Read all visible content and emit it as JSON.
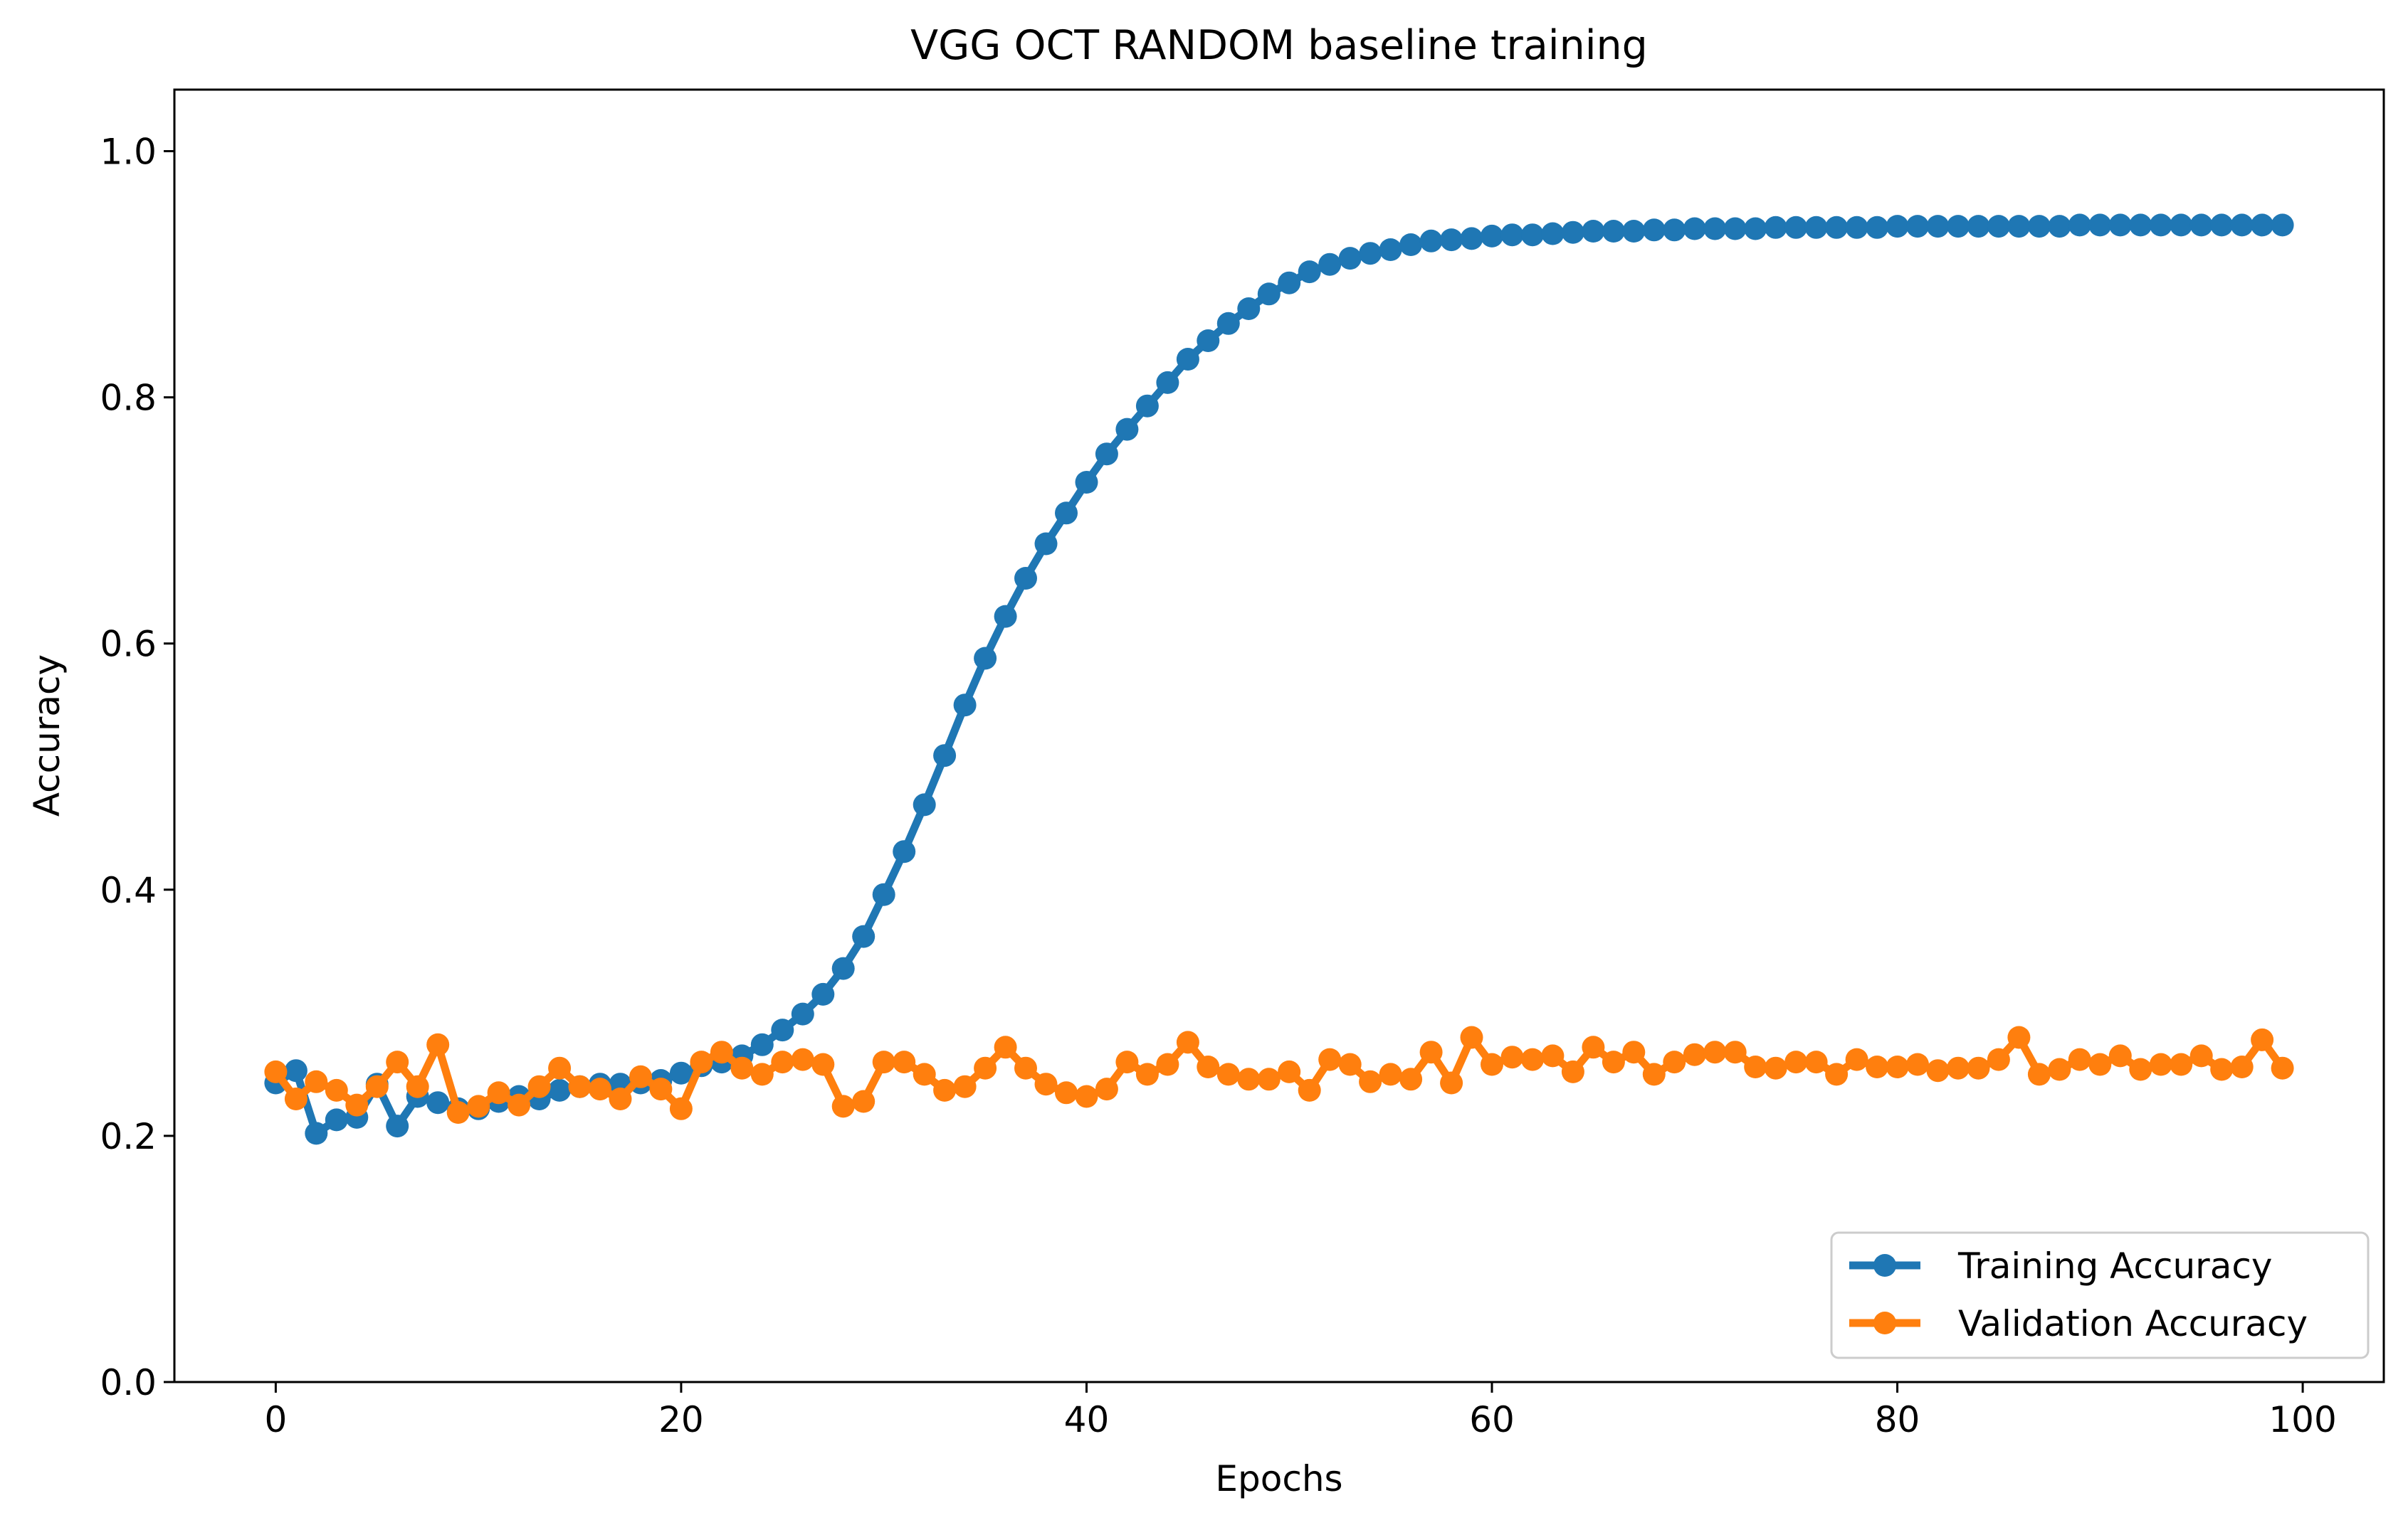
{
  "chart_data": {
    "type": "line",
    "title": "VGG OCT RANDOM baseline training",
    "xlabel": "Epochs",
    "ylabel": "Accuracy",
    "xlim": [
      -5,
      104
    ],
    "ylim": [
      0.0,
      1.05
    ],
    "xticks": [
      0,
      20,
      40,
      60,
      80,
      100
    ],
    "xtick_labels": [
      "0",
      "20",
      "40",
      "60",
      "80",
      "100"
    ],
    "yticks": [
      0.0,
      0.2,
      0.4,
      0.6,
      0.8,
      1.0
    ],
    "ytick_labels": [
      "0.0",
      "0.2",
      "0.4",
      "0.6",
      "0.8",
      "1.0"
    ],
    "grid": false,
    "legend_position": "lower-right",
    "series": [
      {
        "name": "Training Accuracy",
        "color": "#1f77b4",
        "marker": "circle",
        "x": [
          0,
          1,
          2,
          3,
          4,
          5,
          6,
          7,
          8,
          9,
          10,
          11,
          12,
          13,
          14,
          15,
          16,
          17,
          18,
          19,
          20,
          21,
          22,
          23,
          24,
          25,
          26,
          27,
          28,
          29,
          30,
          31,
          32,
          33,
          34,
          35,
          36,
          37,
          38,
          39,
          40,
          41,
          42,
          43,
          44,
          45,
          46,
          47,
          48,
          49,
          50,
          51,
          52,
          53,
          54,
          55,
          56,
          57,
          58,
          59,
          60,
          61,
          62,
          63,
          64,
          65,
          66,
          67,
          68,
          69,
          70,
          71,
          72,
          73,
          74,
          75,
          76,
          77,
          78,
          79,
          80,
          81,
          82,
          83,
          84,
          85,
          86,
          87,
          88,
          89,
          90,
          91,
          92,
          93,
          94,
          95,
          96,
          97,
          98,
          99
        ],
        "values": [
          0.243,
          0.253,
          0.202,
          0.213,
          0.215,
          0.242,
          0.208,
          0.232,
          0.227,
          0.222,
          0.222,
          0.228,
          0.232,
          0.23,
          0.237,
          0.24,
          0.242,
          0.242,
          0.243,
          0.245,
          0.251,
          0.257,
          0.26,
          0.265,
          0.274,
          0.286,
          0.299,
          0.315,
          0.336,
          0.362,
          0.396,
          0.431,
          0.469,
          0.509,
          0.55,
          0.588,
          0.622,
          0.653,
          0.681,
          0.706,
          0.731,
          0.754,
          0.774,
          0.793,
          0.812,
          0.831,
          0.846,
          0.86,
          0.872,
          0.884,
          0.893,
          0.902,
          0.908,
          0.913,
          0.917,
          0.92,
          0.924,
          0.927,
          0.928,
          0.929,
          0.931,
          0.932,
          0.932,
          0.933,
          0.934,
          0.935,
          0.935,
          0.935,
          0.936,
          0.936,
          0.937,
          0.937,
          0.937,
          0.937,
          0.938,
          0.938,
          0.938,
          0.938,
          0.938,
          0.938,
          0.939,
          0.939,
          0.939,
          0.939,
          0.939,
          0.939,
          0.939,
          0.939,
          0.939,
          0.94,
          0.94,
          0.94,
          0.94,
          0.94,
          0.94,
          0.94,
          0.94,
          0.94,
          0.94,
          0.94
        ]
      },
      {
        "name": "Validation Accuracy",
        "color": "#ff7f0e",
        "marker": "circle",
        "x": [
          0,
          1,
          2,
          3,
          4,
          5,
          6,
          7,
          8,
          9,
          10,
          11,
          12,
          13,
          14,
          15,
          16,
          17,
          18,
          19,
          20,
          21,
          22,
          23,
          24,
          25,
          26,
          27,
          28,
          29,
          30,
          31,
          32,
          33,
          34,
          35,
          36,
          37,
          38,
          39,
          40,
          41,
          42,
          43,
          44,
          45,
          46,
          47,
          48,
          49,
          50,
          51,
          52,
          53,
          54,
          55,
          56,
          57,
          58,
          59,
          60,
          61,
          62,
          63,
          64,
          65,
          66,
          67,
          68,
          69,
          70,
          71,
          72,
          73,
          74,
          75,
          76,
          77,
          78,
          79,
          80,
          81,
          82,
          83,
          84,
          85,
          86,
          87,
          88,
          89,
          90,
          91,
          92,
          93,
          94,
          95,
          96,
          97,
          98,
          99
        ],
        "values": [
          0.252,
          0.23,
          0.244,
          0.237,
          0.225,
          0.24,
          0.26,
          0.24,
          0.274,
          0.219,
          0.224,
          0.235,
          0.225,
          0.24,
          0.255,
          0.24,
          0.238,
          0.23,
          0.248,
          0.238,
          0.222,
          0.26,
          0.268,
          0.255,
          0.25,
          0.26,
          0.262,
          0.258,
          0.224,
          0.228,
          0.26,
          0.26,
          0.25,
          0.237,
          0.24,
          0.255,
          0.272,
          0.255,
          0.242,
          0.235,
          0.232,
          0.238,
          0.26,
          0.25,
          0.258,
          0.276,
          0.256,
          0.25,
          0.246,
          0.246,
          0.252,
          0.237,
          0.262,
          0.258,
          0.244,
          0.25,
          0.246,
          0.268,
          0.243,
          0.28,
          0.258,
          0.264,
          0.262,
          0.265,
          0.252,
          0.272,
          0.26,
          0.268,
          0.25,
          0.26,
          0.266,
          0.268,
          0.268,
          0.256,
          0.255,
          0.26,
          0.26,
          0.25,
          0.262,
          0.256,
          0.256,
          0.258,
          0.253,
          0.255,
          0.255,
          0.262,
          0.28,
          0.25,
          0.254,
          0.262,
          0.258,
          0.265,
          0.254,
          0.258,
          0.258,
          0.265,
          0.254,
          0.256,
          0.278,
          0.255
        ]
      }
    ]
  }
}
